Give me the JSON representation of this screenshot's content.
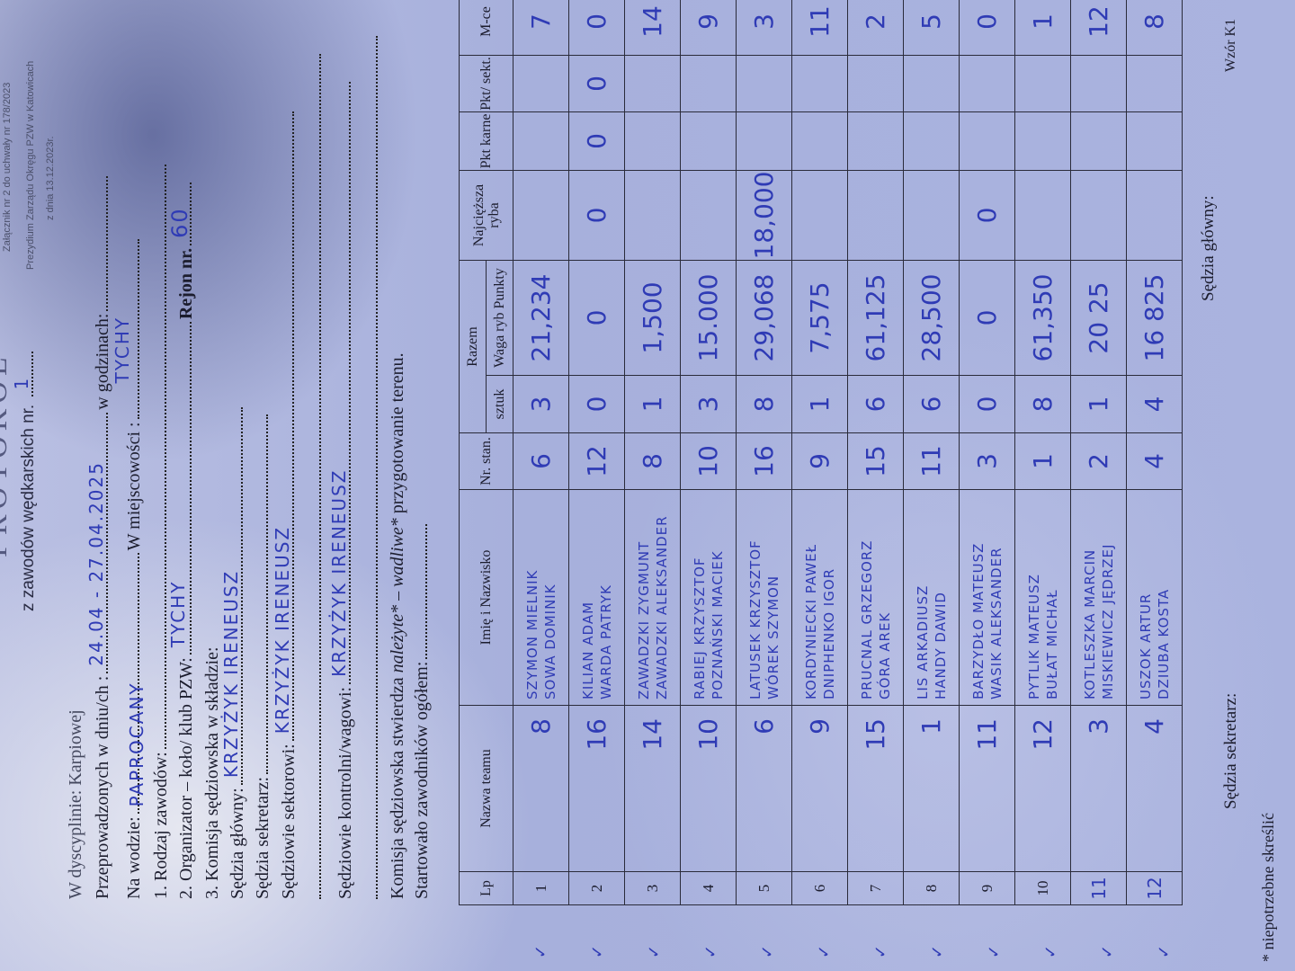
{
  "header": {
    "attachment_line1": "Załącznik nr 2 do uchwały nr 178/2023",
    "attachment_line2": "Prezydium Zarządu Okręgu PZW w Katowicach",
    "attachment_line3": "z dnia 13.12.2023r.",
    "title": "PROTOKÓŁ",
    "subtitle": "z zawodów wędkarskich nr.",
    "competition_no": "1"
  },
  "form": {
    "discipline": "W dyscyplinie: Karpiowej",
    "dates_label": "Przeprowadzonych w dniu/ch :",
    "dates_value": "24.04 - 27.04.2025",
    "hours_label": "w godzinach:",
    "water_label": "Na wodzie:",
    "water_value": "PAPROCANY",
    "town_label": "W miejscowości :",
    "town_value": "TYCHY",
    "type_label": "1. Rodzaj zawodów:",
    "organizer_label": "2. Organizator – koło/ klub PZW:",
    "organizer_value": "TYCHY",
    "region_label": "Rejon nr.",
    "region_value": "60",
    "commission_label": "3. Komisja sędziowska w składzie:",
    "chief_judge_label": "Sędzia główny:",
    "chief_judge_value": "KRZYŻYK IRENEUSZ",
    "secretary_label": "Sędzia sekretarz:",
    "sector_judges_label": "Sędziowie sektorowi:",
    "sector_judges_value": "KRZYŻYK IRENEUSZ",
    "control_judges_label": "Sędziowie kontrolni/wagowi:",
    "control_judges_value": "KRZYŻYK IRENEUSZ",
    "statement_prefix": "Komisja sędziowska stwierdza",
    "statement_ok": "należyte*",
    "statement_sep": "–",
    "statement_bad": "wadliwe*",
    "statement_suffix": "przygotowanie terenu.",
    "participants_label": "Startowało zawodników ogółem:"
  },
  "table": {
    "headers": {
      "lp": "Lp",
      "team": "Nazwa teamu",
      "name": "Imię i Nazwisko",
      "station": "Nr. stan.",
      "total": "Razem",
      "count": "sztuk",
      "weight": "Waga ryb Punkty",
      "heaviest": "Najcięższa ryba",
      "penalty": "Pkt karne",
      "sector_pts": "Pkt/ sekt.",
      "place": "M-ce"
    },
    "check_mark": "✓",
    "rows": [
      {
        "lp": "1",
        "team": "8",
        "names": [
          "SZYMON MIELNIK",
          "SOWA DOMINIK"
        ],
        "station": "6",
        "count": "3",
        "weight": "21,234",
        "heaviest": "",
        "penalty": "",
        "sector_pts": "",
        "place": "7"
      },
      {
        "lp": "2",
        "team": "16",
        "names": [
          "KILIAN ADAM",
          "WARDA PATRYK"
        ],
        "station": "12",
        "count": "0",
        "weight": "0",
        "heaviest": "0",
        "penalty": "0",
        "sector_pts": "0",
        "place": "0"
      },
      {
        "lp": "3",
        "team": "14",
        "names": [
          "ZAWADZKI ZYGMUNT",
          "ZAWADZKI ALEKSANDER"
        ],
        "station": "8",
        "count": "1",
        "weight": "1,500",
        "heaviest": "",
        "penalty": "",
        "sector_pts": "",
        "place": "14"
      },
      {
        "lp": "4",
        "team": "10",
        "names": [
          "RABIEJ KRZYSZTOF",
          "POZNAŃSKI MACIEK"
        ],
        "station": "10",
        "count": "3",
        "weight": "15.000",
        "heaviest": "",
        "penalty": "",
        "sector_pts": "",
        "place": "9"
      },
      {
        "lp": "5",
        "team": "6",
        "names": [
          "LATUSEK KRZYSZTOF",
          "WÓREK SZYMON"
        ],
        "station": "16",
        "count": "8",
        "weight": "29,068",
        "heaviest": "18,000",
        "penalty": "",
        "sector_pts": "",
        "place": "3"
      },
      {
        "lp": "6",
        "team": "9",
        "names": [
          "KORDYNIECKI PAWEŁ",
          "DNIPHENKO IGOR"
        ],
        "station": "9",
        "count": "1",
        "weight": "7,575",
        "heaviest": "",
        "penalty": "",
        "sector_pts": "",
        "place": "11"
      },
      {
        "lp": "7",
        "team": "15",
        "names": [
          "PRUCNAL GRZEGORZ",
          "GÓRA AREK"
        ],
        "station": "15",
        "count": "6",
        "weight": "61,125",
        "heaviest": "",
        "penalty": "",
        "sector_pts": "",
        "place": "2"
      },
      {
        "lp": "8",
        "team": "1",
        "names": [
          "LIS ARKADIUSZ",
          "HANDY DAWID"
        ],
        "station": "11",
        "count": "6",
        "weight": "28,500",
        "heaviest": "",
        "penalty": "",
        "sector_pts": "",
        "place": "5"
      },
      {
        "lp": "9",
        "team": "11",
        "names": [
          "BARZYDŁO MATEUSZ",
          "WASIK ALEKSANDER"
        ],
        "station": "3",
        "count": "0",
        "weight": "0",
        "heaviest": "0",
        "penalty": "",
        "sector_pts": "",
        "place": "0"
      },
      {
        "lp": "10",
        "team": "12",
        "names": [
          "PYTLIK MATEUSZ",
          "BUŁAT MICHAŁ"
        ],
        "station": "1",
        "count": "8",
        "weight": "61,350",
        "heaviest": "",
        "penalty": "",
        "sector_pts": "",
        "place": "1"
      },
      {
        "lp": "11",
        "team": "3",
        "names": [
          "KOTLESZKA MARCIN",
          "MISKIEWICZ JĘDRZEJ"
        ],
        "station": "2",
        "count": "1",
        "weight": "20 25",
        "heaviest": "",
        "penalty": "",
        "sector_pts": "",
        "place": "12"
      },
      {
        "lp": "12",
        "team": "4",
        "names": [
          "USZOK ARTUR",
          "DZIUBA KOSTA"
        ],
        "station": "4",
        "count": "4",
        "weight": "16 825",
        "heaviest": "",
        "penalty": "",
        "sector_pts": "",
        "place": "8"
      }
    ]
  },
  "footer": {
    "secretary_sign": "Sędzia sekretarz:",
    "chief_sign": "Sędzia główny:",
    "template": "Wzór K1",
    "note": "* niepotrzebne skreślić"
  },
  "colors": {
    "ink": "#2f3bb5",
    "paper": "#aab3df"
  }
}
